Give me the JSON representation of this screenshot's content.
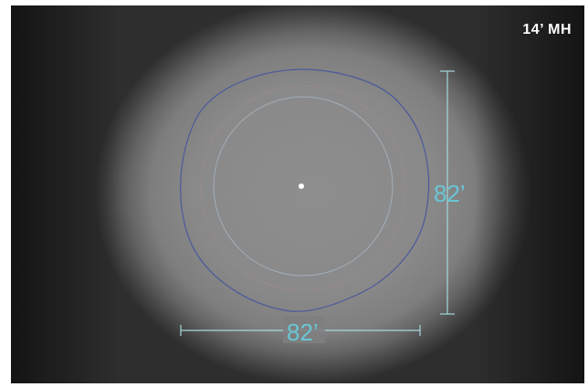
{
  "mounting_height_label": "14’ MH",
  "dimensions": {
    "vertical_label": "82’",
    "horizontal_label": "82’"
  },
  "colors": {
    "background_dark": "#1c1c1c",
    "glow": "#8e8e8e",
    "outer_contour": "#4b5a9c",
    "inner_contour": "#a9b6c4",
    "mid_contour": "#a58c8c",
    "dimension_lines": "#a6d8de",
    "dimension_text": "#69c6d6",
    "center_point": "#ffffff"
  }
}
